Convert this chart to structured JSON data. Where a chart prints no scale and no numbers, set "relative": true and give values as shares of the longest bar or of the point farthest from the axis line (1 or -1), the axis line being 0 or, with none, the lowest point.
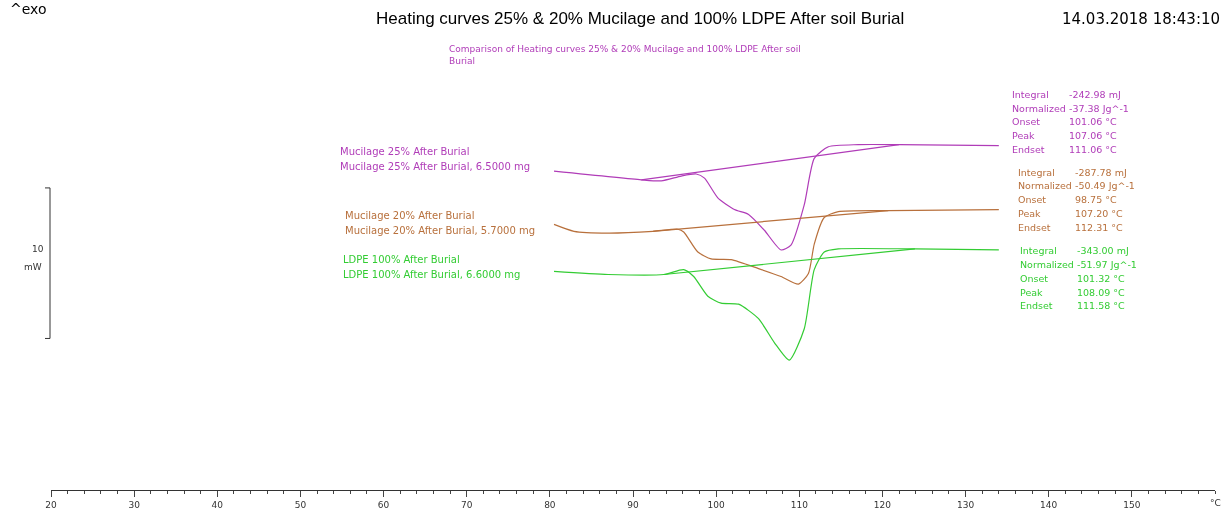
{
  "chart_data": {
    "type": "line",
    "title": "Heating curves 25% & 20% Mucilage and 100% LDPE After soil Burial",
    "subtitle": "Comparison of Heating curves 25% & 20% Mucilage and 100% LDPE After soil Burial",
    "xlabel": "°C",
    "relative": true,
    "xlim": [
      20,
      160
    ],
    "xticks": [
      20,
      30,
      40,
      50,
      60,
      70,
      80,
      90,
      100,
      110,
      120,
      130,
      140,
      150
    ],
    "legend": false,
    "marker": "none",
    "line_style": "solid",
    "series": [
      {
        "name": "Mucilage 25% After Burial",
        "color": "#b03cb8",
        "x": [
          80.5,
          91.0,
          93.4,
          95.8,
          97.6,
          98.6,
          100.2,
          102.2,
          103.9,
          105.8,
          107.8,
          109.0,
          110.6,
          111.8,
          113.5,
          117.1,
          122.0,
          134.0
        ],
        "values": [
          0.923,
          0.898,
          0.895,
          0.909,
          0.915,
          0.903,
          0.846,
          0.812,
          0.798,
          0.752,
          0.695,
          0.709,
          0.826,
          0.96,
          0.994,
          1.0,
          1.0,
          0.997
        ]
      },
      {
        "color": "#b03cb8",
        "x": [
          91.0,
          122.0
        ],
        "values": [
          0.898,
          1.0
        ]
      },
      {
        "name": "Mucilage 20% After Burial",
        "color": "#b8703c",
        "x": [
          80.5,
          82.9,
          87.0,
          92.4,
          95.4,
          96.1,
          97.8,
          99.4,
          101.8,
          105.1,
          107.8,
          109.9,
          111.1,
          111.8,
          113.0,
          114.7,
          120.7,
          134.0
        ],
        "values": [
          0.769,
          0.749,
          0.744,
          0.749,
          0.755,
          0.747,
          0.689,
          0.669,
          0.667,
          0.641,
          0.618,
          0.596,
          0.627,
          0.712,
          0.789,
          0.806,
          0.809,
          0.812
        ]
      },
      {
        "color": "#b8703c",
        "x": [
          92.4,
          120.7
        ],
        "values": [
          0.749,
          0.809
        ]
      },
      {
        "name": "LDPE 100% After Burial",
        "color": "#33cc33",
        "x": [
          80.5,
          87.0,
          93.7,
          96.1,
          97.3,
          99.0,
          100.6,
          102.7,
          105.1,
          107.0,
          108.8,
          110.6,
          111.8,
          113.0,
          114.7,
          123.9,
          134.0
        ],
        "values": [
          0.633,
          0.624,
          0.624,
          0.638,
          0.618,
          0.561,
          0.541,
          0.538,
          0.496,
          0.427,
          0.376,
          0.467,
          0.638,
          0.689,
          0.698,
          0.698,
          0.695
        ]
      },
      {
        "color": "#33cc33",
        "x": [
          93.7,
          123.9
        ],
        "values": [
          0.624,
          0.698
        ]
      }
    ],
    "annotations": [
      "^exo",
      "14.03.2018 18:43:10",
      "Mucilage 25% After Burial, 6.5000 mg",
      "Mucilage 20% After Burial, 5.7000 mg",
      "LDPE 100% After Burial, 6.6000 mg",
      "10",
      "mW",
      "Integral",
      "-242.98 mJ",
      "Normalized",
      "-37.38 Jg^-1",
      "Onset",
      "101.06 °C",
      "Peak",
      "107.06 °C",
      "Endset",
      "111.06 °C",
      "Integral",
      "-287.78 mJ",
      "Normalized",
      "-50.49 Jg^-1",
      "Onset",
      "98.75 °C",
      "Peak",
      "107.20 °C",
      "Endset",
      "112.31 °C",
      "Integral",
      "-343.00 mJ",
      "Normalized",
      "-51.97 Jg^-1",
      "Onset",
      "101.32 °C",
      "Peak",
      "108.09 °C",
      "Endset",
      "111.58 °C"
    ]
  }
}
